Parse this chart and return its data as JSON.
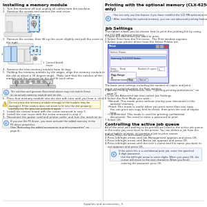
{
  "bg_color": "#ffffff",
  "left_title": "Installing a memory module",
  "right_title": "Printing with the optional memory (CLX-6250 Series\nonly)",
  "footer_text": "Supplies and accessories_ 5",
  "left_steps": [
    "1.  Turn the machine off and unplug all cables from the machine.",
    "2.  Remove the screws and remove the rear cover.",
    "3.  Remove the screws, then lift up the cover slightly and pull the cover to\n    the right.",
    "4.  Remove the new memory module from its bag.",
    "5.  Holding the memory module by the edges, align the memory module in\n    the slot at about a 30-degree angle.  Make sure that the notches of the\n    module and the grooves on the slot fit each other.",
    "6.  Press that memory module into the slot with care until you hear a ‘click’.",
    "7.  Install the control board with the screw removed in step 3.",
    "8.  Install the rear cover with the screw removed in step 2.",
    "9.  Reconnect the power cord and printer cable, and turn the machine on."
  ],
  "right_note_bullets": [
    "•You can only use this feature if you have installed the 512 MB optional memory. (CLX-6250 Series only).",
    "•After installing the optional memory, you can use advanced printing features, such as proofing a job and specifying of printing a private job in the printer properties window."
  ],
  "job_settings_title": "Job Settings",
  "job_settings_text": "This option allows you to choose how to print the printing file by using\nthe 512 MB optional memory.",
  "job_steps_1": [
    "1.Open the document you want to print.",
    "2.Select Print from the File menu.  The Print window appears.",
    "3.Select your printer driver from the Select Printer list."
  ],
  "print_dialog_caption": "The basic print settings including the number of copies and print\nrange are selected within the Print window.",
  "job_steps_2": [
    "4.Access Printing Preferences (See “Opening printing preferences” on\n  page 2).",
    "5.Click the Advanced tab then select Job Settings.",
    "6.Select the Print Mode you want :",
    "   •Normal: This mode prints without storing your document in the\n      optional memory.",
    "   •Proof: This mode is useful when you print more than one copy.\n      You can print one copy first to check, then print the rest of copies\n      later.",
    "   •Confidential: This mode is used for printing confidential\n      documents. You need to enter a password to print.",
    "7.Select OK."
  ],
  "control_title": "Controlling the active job queue",
  "control_text": "All of the print jobs waiting to be printed are listed in the active job queue\nin the order you sent them to the printer. You can delete a job from the\nqueue before printing, or promote a job to print sooner.",
  "control_steps": [
    "1.Press Menu on the control panel.",
    "2.Press left/right arrow until Job Management appears and press OK.",
    "3.Press left/right arrow until Active Job appears and press OK.",
    "4.Press left/right arrow until the user’s name and file name you want to\n   use appears and press OK."
  ],
  "note_password": "If the select file is a confidential print job, enter the specified\n4-digit password:\n   Use the left/right arrow to enter digits. When you press OK, the\n   cursor will move to the next character. When you finish\n   entering the password, press OK.",
  "warning_text": "Do not press the memory module strongly or the module may be\ndamaged. If the module does not seem to fit into the slot properly,\ncarefully try the previous procedure again.",
  "note_ps": "If you use the PS driver, you must activate the added memory in the\nPS driver properties.\n(See “Activating the added accessories in printer properties” on\npage 4)."
}
